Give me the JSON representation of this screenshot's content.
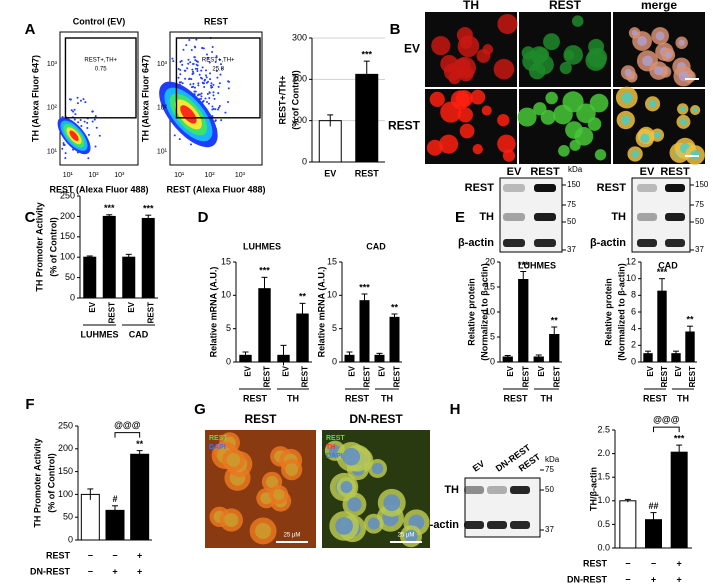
{
  "panel_labels": [
    "A",
    "B",
    "C",
    "D",
    "E",
    "F",
    "G",
    "H"
  ],
  "flow": {
    "titles": [
      "Control (EV)",
      "REST"
    ],
    "ylabel": "TH (Alexa Fluor 647)",
    "xlabel": "REST (Alexa Fluor 488)",
    "gate_label": "REST+,TH+",
    "gate_values": [
      0.75,
      25.8
    ],
    "ticks": [
      "10¹",
      "10²",
      "10³"
    ]
  },
  "micrographs_B": {
    "columns": [
      "TH",
      "REST",
      "merge"
    ],
    "rows": [
      "EV",
      "REST"
    ]
  },
  "blots_E": [
    {
      "rows": [
        "REST",
        "TH",
        "β-actin"
      ],
      "lanes": [
        "EV",
        "REST"
      ],
      "kda": [
        150,
        75,
        50,
        37
      ],
      "unit": "kDa"
    },
    {
      "rows": [
        "REST",
        "TH",
        "β-actin"
      ],
      "lanes": [
        "EV",
        "REST"
      ],
      "kda": [
        150,
        75,
        50,
        37
      ]
    }
  ],
  "micrographs_G": {
    "titles": [
      "REST",
      "DN-REST"
    ],
    "stains": [
      [
        "REST",
        "DAPI"
      ],
      [
        "REST",
        "TH",
        "DAPI"
      ]
    ],
    "scale": "25 µM"
  },
  "blot_H": {
    "lanes": [
      "EV",
      "DN-REST",
      "REST"
    ],
    "rows": [
      "TH",
      "β-actin"
    ],
    "kda": [
      75,
      50,
      37
    ],
    "unit": "kDa"
  },
  "chart_data": [
    {
      "type": "bar",
      "ylabel": [
        "REST+/TH+",
        "(% of Control)"
      ],
      "categories": [
        "EV",
        "REST"
      ],
      "values": [
        100,
        212
      ],
      "errors": [
        14,
        32
      ],
      "colors": [
        "#ffffff",
        "#000000"
      ],
      "annotations": [
        null,
        "***"
      ],
      "ylim": [
        0,
        300
      ],
      "yticks": [
        0,
        100,
        200,
        300
      ],
      "grid": true
    },
    {
      "type": "bar",
      "ylabel": [
        "TH Promoter Activity",
        "(% of Control)"
      ],
      "categories": [
        "EV",
        "REST",
        "EV",
        "REST"
      ],
      "groups": [
        "LUHMES",
        "CAD"
      ],
      "values": [
        100,
        200,
        100,
        195
      ],
      "errors": [
        3,
        4,
        7,
        8
      ],
      "colors": [
        "#000000",
        "#000000",
        "#000000",
        "#000000"
      ],
      "annotations": [
        null,
        "***",
        null,
        "***"
      ],
      "ylim": [
        0,
        250
      ],
      "yticks": [
        0,
        50,
        100,
        150,
        200,
        250
      ]
    },
    {
      "type": "bar",
      "title": "LUHMES",
      "ylabel": [
        "Relative mRNA (A.U.)"
      ],
      "categories": [
        "EV",
        "REST",
        "EV",
        "REST"
      ],
      "groups": [
        "REST",
        "TH"
      ],
      "values": [
        1,
        11,
        1,
        7.2
      ],
      "errors": [
        0.5,
        1.7,
        1.5,
        1.6
      ],
      "colors": [
        "#000000",
        "#000000",
        "#000000",
        "#000000"
      ],
      "annotations": [
        null,
        "***",
        null,
        "**"
      ],
      "ylim": [
        0,
        15
      ],
      "yticks": [
        0,
        5,
        10,
        15
      ]
    },
    {
      "type": "bar",
      "title": "CAD",
      "ylabel": [
        "Relative mRNA (A.U.)"
      ],
      "categories": [
        "EV",
        "REST",
        "EV",
        "REST"
      ],
      "groups": [
        "REST",
        "TH"
      ],
      "values": [
        1,
        9.2,
        1,
        6.7
      ],
      "errors": [
        0.5,
        1,
        0.3,
        0.5
      ],
      "colors": [
        "#000000",
        "#000000",
        "#000000",
        "#000000"
      ],
      "annotations": [
        null,
        "***",
        null,
        "**"
      ],
      "ylim": [
        0,
        15
      ],
      "yticks": [
        0,
        5,
        10,
        15
      ]
    },
    {
      "type": "bar",
      "title": "LUHMES",
      "ylabel": [
        "Relative protein",
        "(Normalized to β-actin)"
      ],
      "categories": [
        "EV",
        "REST",
        "EV",
        "REST"
      ],
      "groups": [
        "REST",
        "TH"
      ],
      "values": [
        1,
        16.5,
        1,
        5.5
      ],
      "errors": [
        0.3,
        1.6,
        0.4,
        1.5
      ],
      "colors": [
        "#000000",
        "#000000",
        "#000000",
        "#000000"
      ],
      "annotations": [
        null,
        "***",
        null,
        "**"
      ],
      "ylim": [
        0,
        20
      ],
      "yticks": [
        0,
        5,
        10,
        15,
        20
      ]
    },
    {
      "type": "bar",
      "title": "CAD",
      "ylabel": [
        "Relative protein",
        "(Normalized to β-actin)"
      ],
      "categories": [
        "EV",
        "REST",
        "EV",
        "REST"
      ],
      "groups": [
        "REST",
        "TH"
      ],
      "values": [
        1,
        8.5,
        1,
        3.6
      ],
      "errors": [
        0.3,
        1.5,
        0.3,
        0.7
      ],
      "colors": [
        "#000000",
        "#000000",
        "#000000",
        "#000000"
      ],
      "annotations": [
        null,
        "***",
        null,
        "**"
      ],
      "ylim": [
        0,
        12
      ],
      "yticks": [
        0,
        2,
        4,
        6,
        8,
        10,
        12
      ]
    },
    {
      "type": "bar",
      "ylabel": [
        "TH Promoter Activity",
        "(% of Control)"
      ],
      "conditions": [
        {
          "name": "REST",
          "signs": [
            "−",
            "−",
            "+"
          ]
        },
        {
          "name": "DN-REST",
          "signs": [
            "−",
            "+",
            "+"
          ]
        }
      ],
      "values": [
        100,
        65,
        188
      ],
      "errors": [
        12,
        10,
        8
      ],
      "colors": [
        "#ffffff",
        "#000000",
        "#000000"
      ],
      "annotations": [
        null,
        "#",
        "**"
      ],
      "bracket_label": "@@@",
      "ylim": [
        0,
        250
      ],
      "yticks": [
        0,
        50,
        100,
        150,
        200,
        250
      ]
    },
    {
      "type": "bar",
      "ylabel": [
        "TH/β-actin"
      ],
      "conditions": [
        {
          "name": "REST",
          "signs": [
            "−",
            "−",
            "+"
          ]
        },
        {
          "name": "DN-REST",
          "signs": [
            "−",
            "+",
            "+"
          ]
        }
      ],
      "values": [
        1,
        0.6,
        2.03
      ],
      "errors": [
        0.03,
        0.15,
        0.15
      ],
      "colors": [
        "#ffffff",
        "#000000",
        "#000000"
      ],
      "annotations": [
        null,
        "##",
        "***"
      ],
      "bracket_label": "@@@",
      "ylim": [
        0,
        2.5
      ],
      "yticks": [
        {
          "value": 0,
          "label": "0.0"
        },
        {
          "value": 0.5,
          "label": "0.5"
        },
        {
          "value": 1,
          "label": "1.0"
        },
        {
          "value": 1.5,
          "label": "1.5"
        },
        {
          "value": 2,
          "label": "2.0"
        },
        {
          "value": 2.5,
          "label": "2.5"
        }
      ]
    }
  ]
}
